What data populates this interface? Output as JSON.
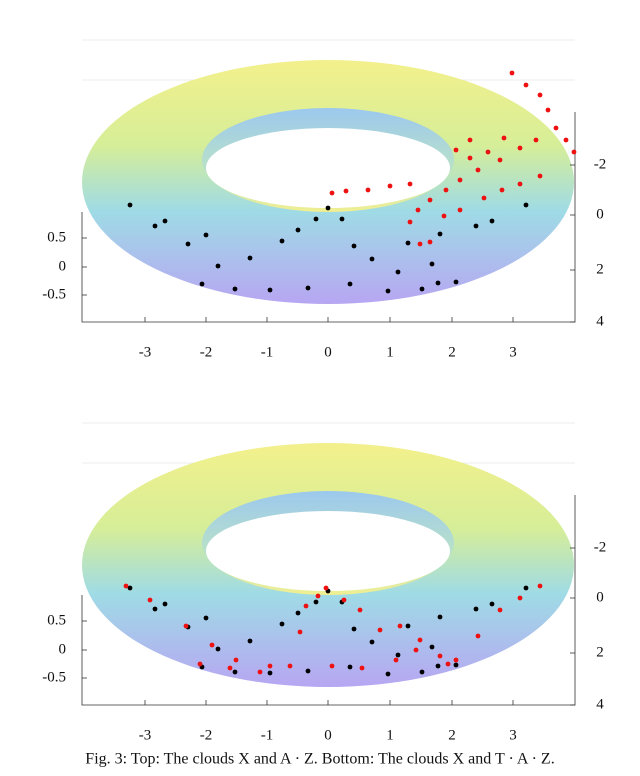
{
  "figure": {
    "panels": [
      {
        "x_ticks": [
          "-3",
          "-2",
          "-1",
          "0",
          "1",
          "2",
          "3"
        ],
        "z_ticks": [
          "0.5",
          "0",
          "-0.5"
        ],
        "y_ticks": [
          "-2",
          "0",
          "2",
          "4"
        ]
      },
      {
        "x_ticks": [
          "-3",
          "-2",
          "-1",
          "0",
          "1",
          "2",
          "3"
        ],
        "z_ticks": [
          "0.5",
          "0",
          "-0.5"
        ],
        "y_ticks": [
          "-2",
          "0",
          "2",
          "4"
        ]
      }
    ],
    "caption": "Fig. 3: Top: The clouds X and A · Z. Bottom: The clouds X and T · A · Z."
  }
}
